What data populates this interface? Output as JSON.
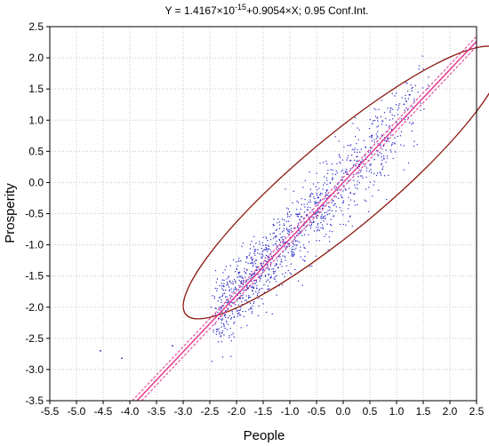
{
  "chart_data": {
    "type": "scatter",
    "title": {
      "main": "Y = 1.4167×10",
      "superscript": "-15",
      "rest": "+0.9054×X; 0.95 Conf.Int."
    },
    "xlabel": "People",
    "ylabel": "Prosperity",
    "xlim": [
      -5.5,
      2.5
    ],
    "ylim": [
      -3.5,
      2.5
    ],
    "x_ticks": [
      "-5.5",
      "-5.0",
      "-4.5",
      "-4.0",
      "-3.5",
      "-3.0",
      "-2.5",
      "-2.0",
      "-1.5",
      "-1.0",
      "-0.5",
      "0.0",
      "0.5",
      "1.0",
      "1.5",
      "2.0",
      "2.5"
    ],
    "y_ticks": [
      "2.5",
      "2.0",
      "1.5",
      "1.0",
      "0.5",
      "0.0",
      "-0.5",
      "-1.0",
      "-1.5",
      "-2.0",
      "-2.5",
      "-3.0",
      "-3.5"
    ],
    "grid": true,
    "regression": {
      "intercept": 0.0,
      "slope": 0.9054,
      "confidence": 0.95,
      "ci_half_width": 0.08,
      "color": "#e0308a"
    },
    "ellipse": {
      "center": [
        0.0,
        0.0
      ],
      "rx_data": 3.85,
      "ry_data": 0.72,
      "rotation_deg": 40,
      "color": "#8b1a10"
    },
    "points_color": "#2323c8",
    "outliers": [
      [
        -4.55,
        -2.7
      ],
      [
        -4.15,
        -2.82
      ],
      [
        -3.2,
        -2.62
      ]
    ],
    "series": [
      {
        "x_range": [
          -2.4,
          1.6
        ],
        "n": 1200,
        "slope": 0.9054,
        "spread": 0.32
      }
    ]
  }
}
